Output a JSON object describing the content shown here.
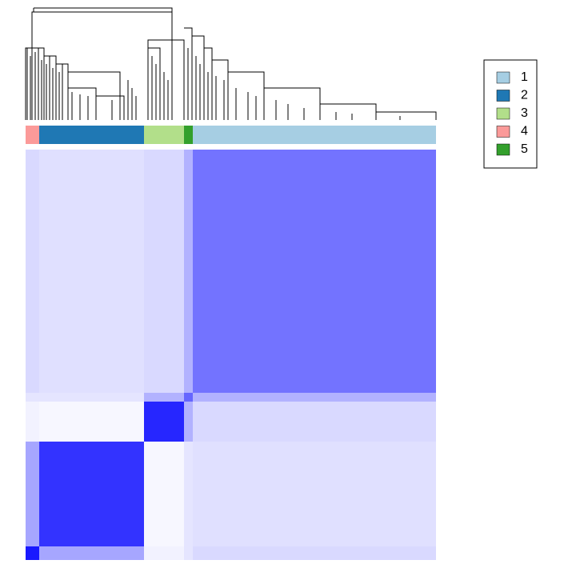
{
  "chart_data": {
    "type": "heatmap",
    "color": "#0000ff",
    "series": [
      {
        "name": "1",
        "color": "#a6cee3"
      },
      {
        "name": "2",
        "color": "#1f78b4"
      },
      {
        "name": "3",
        "color": "#b2df8a"
      },
      {
        "name": "4",
        "color": "#fb9a99"
      },
      {
        "name": "5",
        "color": "#33a02c"
      }
    ],
    "categories": [
      "4",
      "2",
      "3",
      "5",
      "1"
    ],
    "sizes": [
      17,
      131,
      50,
      11,
      304
    ],
    "matrix": [
      [
        0.9,
        0.35,
        0.05,
        0.1,
        0.15
      ],
      [
        0.35,
        0.8,
        0.03,
        0.1,
        0.12
      ],
      [
        0.05,
        0.03,
        0.85,
        0.3,
        0.15
      ],
      [
        0.1,
        0.1,
        0.3,
        0.6,
        0.3
      ],
      [
        0.15,
        0.12,
        0.15,
        0.3,
        0.55
      ]
    ],
    "legend": "right"
  }
}
